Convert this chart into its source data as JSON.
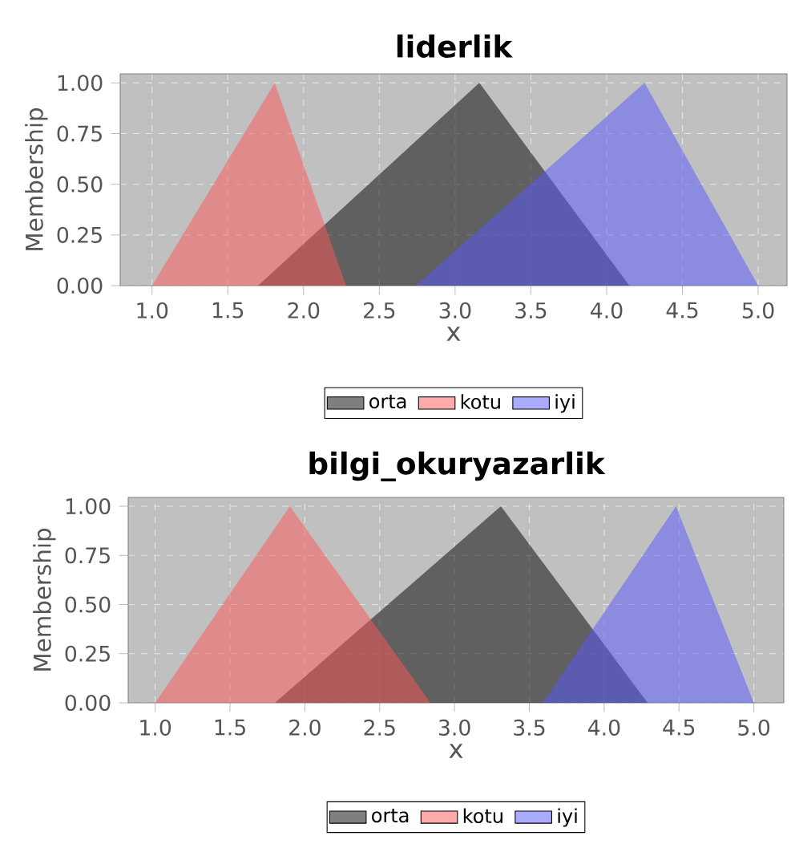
{
  "chart_data": [
    {
      "type": "area",
      "title": "liderlik",
      "xlabel": "x",
      "ylabel": "Membership",
      "xlim": [
        0.79,
        5.19
      ],
      "ylim": [
        0,
        1.045
      ],
      "xticks": [
        {
          "value": 1,
          "label": "1.0"
        },
        {
          "value": 1.5,
          "label": "1.5"
        },
        {
          "value": 2,
          "label": "2.0"
        },
        {
          "value": 2.5,
          "label": "2.5"
        },
        {
          "value": 3,
          "label": "3.0"
        },
        {
          "value": 3.5,
          "label": "3.5"
        },
        {
          "value": 4,
          "label": "4.0"
        },
        {
          "value": 4.5,
          "label": "4.5"
        },
        {
          "value": 5,
          "label": "5.0"
        }
      ],
      "yticks": [
        {
          "value": 0,
          "label": "0.00"
        },
        {
          "value": 0.25,
          "label": "0.25"
        },
        {
          "value": 0.5,
          "label": "0.50"
        },
        {
          "value": 0.75,
          "label": "0.75"
        },
        {
          "value": 1,
          "label": "1.00"
        }
      ],
      "grid": true,
      "legend": "bottom",
      "series": [
        {
          "name": "orta",
          "color": "#000000",
          "x": [
            1.7,
            3.16,
            4.15
          ],
          "values": [
            0,
            1,
            0
          ]
        },
        {
          "name": "kotu",
          "color": "#ff5555",
          "x": [
            1.0,
            1.81,
            2.28
          ],
          "values": [
            0,
            1,
            0
          ]
        },
        {
          "name": "iyi",
          "color": "#5555ff",
          "x": [
            2.74,
            4.25,
            5.0
          ],
          "values": [
            0,
            1,
            0
          ]
        }
      ]
    },
    {
      "type": "area",
      "title": "bilgi_okuryazarlik",
      "xlabel": "x",
      "ylabel": "Membership",
      "xlim": [
        0.82,
        5.2
      ],
      "ylim": [
        0,
        1.045
      ],
      "xticks": [
        {
          "value": 1,
          "label": "1.0"
        },
        {
          "value": 1.5,
          "label": "1.5"
        },
        {
          "value": 2,
          "label": "2.0"
        },
        {
          "value": 2.5,
          "label": "2.5"
        },
        {
          "value": 3,
          "label": "3.0"
        },
        {
          "value": 3.5,
          "label": "3.5"
        },
        {
          "value": 4,
          "label": "4.0"
        },
        {
          "value": 4.5,
          "label": "4.5"
        },
        {
          "value": 5,
          "label": "5.0"
        }
      ],
      "yticks": [
        {
          "value": 0,
          "label": "0.00"
        },
        {
          "value": 0.25,
          "label": "0.25"
        },
        {
          "value": 0.5,
          "label": "0.50"
        },
        {
          "value": 0.75,
          "label": "0.75"
        },
        {
          "value": 1,
          "label": "1.00"
        }
      ],
      "grid": true,
      "legend": "bottom",
      "series": [
        {
          "name": "orta",
          "color": "#000000",
          "x": [
            1.8,
            3.31,
            4.29
          ],
          "values": [
            0,
            1,
            0
          ]
        },
        {
          "name": "kotu",
          "color": "#ff5555",
          "x": [
            1.0,
            1.9,
            2.84
          ],
          "values": [
            0,
            1,
            0
          ]
        },
        {
          "name": "iyi",
          "color": "#5555ff",
          "x": [
            3.59,
            4.48,
            5.0
          ],
          "values": [
            0,
            1,
            0
          ]
        }
      ]
    }
  ]
}
